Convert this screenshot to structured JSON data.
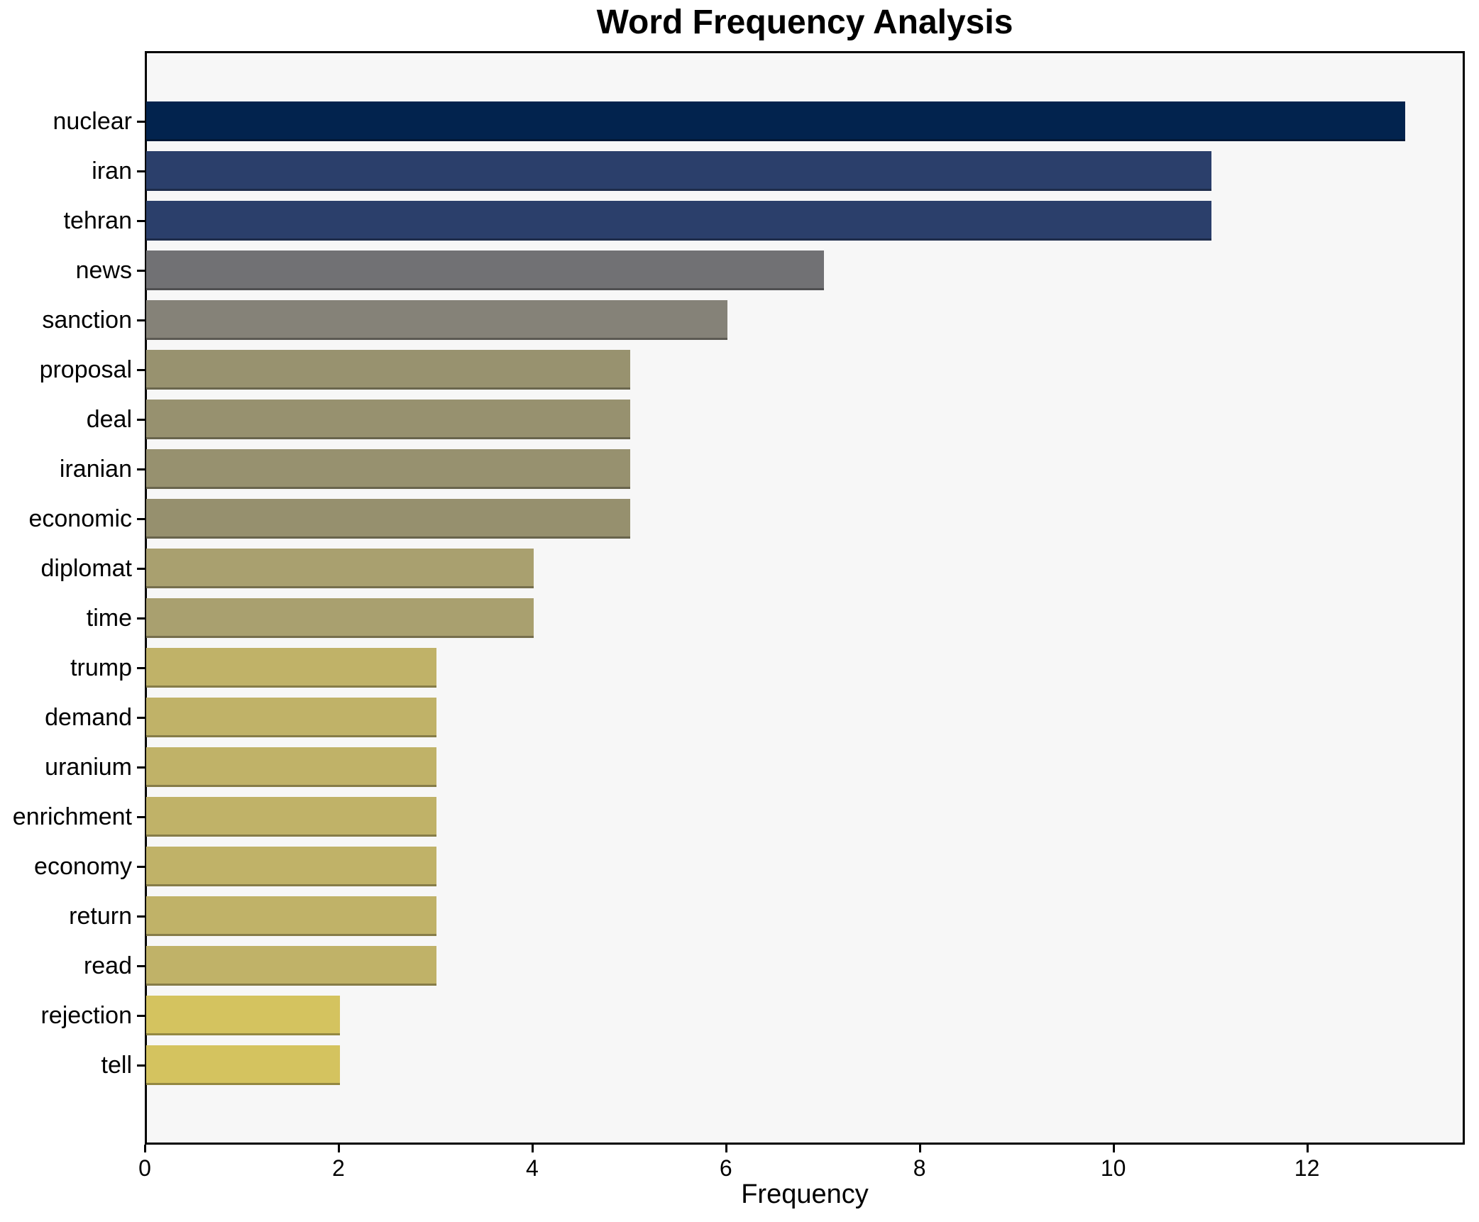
{
  "title": "Word Frequency Analysis",
  "chart_data": {
    "type": "bar",
    "orientation": "horizontal",
    "title": "Word Frequency Analysis",
    "xlabel": "Frequency",
    "ylabel": "",
    "categories": [
      "nuclear",
      "iran",
      "tehran",
      "news",
      "sanction",
      "proposal",
      "deal",
      "iranian",
      "economic",
      "diplomat",
      "time",
      "trump",
      "demand",
      "uranium",
      "enrichment",
      "economy",
      "return",
      "read",
      "rejection",
      "tell"
    ],
    "values": [
      13,
      11,
      11,
      7,
      6,
      5,
      5,
      5,
      5,
      4,
      4,
      3,
      3,
      3,
      3,
      3,
      3,
      3,
      2,
      2
    ],
    "bar_colors": [
      "#02234E",
      "#2B3F6B",
      "#2B3F6B",
      "#717174",
      "#858278",
      "#98926F",
      "#97916F",
      "#97916F",
      "#96906E",
      "#A9A06F",
      "#A9A06F",
      "#C0B268",
      "#C0B268",
      "#C0B268",
      "#C0B268",
      "#C0B268",
      "#C0B268",
      "#C0B268",
      "#D4C35F",
      "#D4C35F"
    ],
    "xticks": [
      0,
      2,
      4,
      6,
      8,
      10,
      12
    ],
    "xlim": [
      0,
      13.63
    ],
    "grid": false,
    "legend": "none",
    "plot_background": "#F7F7F7",
    "figure_background": "#FFFFFF",
    "spine_color": "#000000"
  }
}
